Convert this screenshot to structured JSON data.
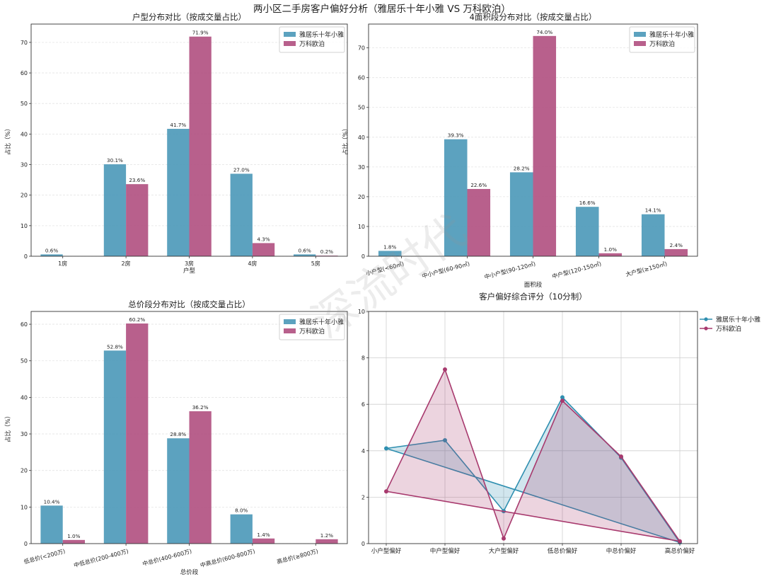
{
  "figure_title": "两小区二手房客户偏好分析（雅居乐十年小雅 VS 万科欧泊）",
  "watermark": "深流时代",
  "colors": {
    "series_a": "#4a98b8",
    "series_b": "#b04f80",
    "radar_a": "#2f8fb0",
    "radar_b": "#a83a6e"
  },
  "chart_data": [
    {
      "type": "bar",
      "title": "户型分布对比（按成交量占比）",
      "xlabel": "户型",
      "ylabel": "占比（%）",
      "ylim": [
        0,
        76
      ],
      "yticks": [
        0,
        10,
        20,
        30,
        40,
        50,
        60,
        70
      ],
      "rotate_labels": false,
      "categories": [
        "1房",
        "2房",
        "3房",
        "4房",
        "5房"
      ],
      "series": [
        {
          "name": "雅居乐十年小雅",
          "values": [
            0.6,
            30.1,
            41.7,
            27.0,
            0.6
          ],
          "labels": [
            "0.6%",
            "30.1%",
            "41.7%",
            "27.0%",
            "0.6%"
          ]
        },
        {
          "name": "万科欧泊",
          "values": [
            0,
            23.6,
            71.9,
            4.3,
            0.2
          ],
          "labels": [
            "",
            "23.6%",
            "71.9%",
            "4.3%",
            "0.2%"
          ]
        }
      ]
    },
    {
      "type": "bar",
      "title": "4面积段分布对比（按成交量占比）",
      "xlabel": "面积段",
      "ylabel": "占比（%）",
      "ylim": [
        0,
        78
      ],
      "yticks": [
        0,
        10,
        20,
        30,
        40,
        50,
        60,
        70
      ],
      "rotate_labels": true,
      "categories": [
        "小户型(<60㎡)",
        "中小户型(60-90㎡)",
        "中小户型(90-120㎡)",
        "中户型(120-150㎡)",
        "大户型(≥150㎡)"
      ],
      "series": [
        {
          "name": "雅居乐十年小雅",
          "values": [
            1.8,
            39.3,
            28.2,
            16.6,
            14.1
          ],
          "labels": [
            "1.8%",
            "39.3%",
            "28.2%",
            "16.6%",
            "14.1%"
          ]
        },
        {
          "name": "万科欧泊",
          "values": [
            0,
            22.6,
            74.0,
            1.0,
            2.4
          ],
          "labels": [
            "",
            "22.6%",
            "74.0%",
            "1.0%",
            "2.4%"
          ]
        }
      ]
    },
    {
      "type": "bar",
      "title": "总价段分布对比（按成交量占比）",
      "xlabel": "总价段",
      "ylabel": "占比（%）",
      "ylim": [
        0,
        63.5
      ],
      "yticks": [
        0,
        10,
        20,
        30,
        40,
        50,
        60
      ],
      "rotate_labels": true,
      "categories": [
        "低总价(<200万)",
        "中低总价(200-400万)",
        "中总价(400-600万)",
        "中高总价(600-800万)",
        "高总价(≥800万)"
      ],
      "series": [
        {
          "name": "雅居乐十年小雅",
          "values": [
            10.4,
            52.8,
            28.8,
            8.0,
            0
          ],
          "labels": [
            "10.4%",
            "52.8%",
            "28.8%",
            "8.0%",
            ""
          ]
        },
        {
          "name": "万科欧泊",
          "values": [
            1.0,
            60.2,
            36.2,
            1.4,
            1.2
          ],
          "labels": [
            "1.0%",
            "60.2%",
            "36.2%",
            "1.4%",
            "1.2%"
          ]
        }
      ]
    },
    {
      "type": "radar-unrolled",
      "title": "客户偏好综合评分（10分制）",
      "ylim": [
        0,
        10
      ],
      "yticks": [
        0,
        2,
        4,
        6,
        8,
        10
      ],
      "categories": [
        "小户型偏好",
        "中户型偏好",
        "大户型偏好",
        "低总价偏好",
        "中总价偏好",
        "高总价偏好"
      ],
      "series": [
        {
          "name": "雅居乐十年小雅",
          "values": [
            4.1,
            4.45,
            1.4,
            6.3,
            3.7,
            0.05
          ]
        },
        {
          "name": "万科欧泊",
          "values": [
            2.25,
            7.5,
            0.22,
            6.15,
            3.75,
            0.1
          ]
        }
      ]
    }
  ]
}
